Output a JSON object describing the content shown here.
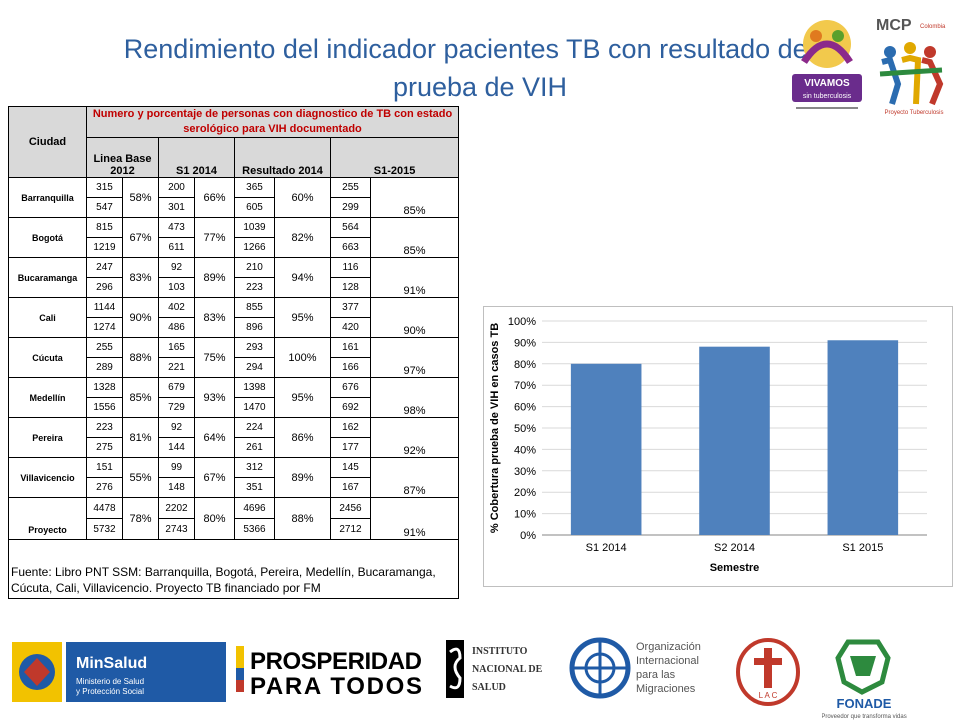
{
  "title": {
    "line1": "Rendimiento del indicador pacientes TB con resultado de la",
    "line2": "prueba de VIH"
  },
  "logos": {
    "vivamos_text": "VIVAMOS sin tuberculosis",
    "mcp_text": "MCP",
    "minsalud_text": "MinSalud",
    "minsalud_sub": "Ministerio de Salud y Protección Social",
    "prosperidad_line1": "PROSPERIDAD",
    "prosperidad_line2": "PARA TODOS",
    "ins_line1": "Instituto",
    "ins_line2": "Nacional de",
    "ins_line3": "Salud",
    "oim_line1": "Organización",
    "oim_line2": "Internacional",
    "oim_line3": "para las",
    "oim_line4": "Migraciones",
    "lac_text": "L A C",
    "fonade_text": "FONADE",
    "fonade_sub": "Proveedor que transforma vidas"
  },
  "table": {
    "header_city": "Ciudad",
    "header_main": "Numero y porcentaje de personas con diagnostico de TB con estado serológico para VIH documentado",
    "header_cols": [
      "Linea Base 2012",
      "S1 2014",
      "Resultado 2014",
      "S1-2015"
    ],
    "rows": [
      {
        "city": "Barranquilla",
        "lb": [
          "315",
          "547"
        ],
        "lb_pct": "58%",
        "s1": [
          "200",
          "301"
        ],
        "s1_pct": "66%",
        "r14": [
          "365",
          "605"
        ],
        "r14_pct": "60%",
        "s15": [
          "255",
          "299"
        ],
        "s15_pct": "85%"
      },
      {
        "city": "Bogotá",
        "lb": [
          "815",
          "1219"
        ],
        "lb_pct": "67%",
        "s1": [
          "473",
          "611"
        ],
        "s1_pct": "77%",
        "r14": [
          "1039",
          "1266"
        ],
        "r14_pct": "82%",
        "s15": [
          "564",
          "663"
        ],
        "s15_pct": "85%"
      },
      {
        "city": "Bucaramanga",
        "lb": [
          "247",
          "296"
        ],
        "lb_pct": "83%",
        "s1": [
          "92",
          "103"
        ],
        "s1_pct": "89%",
        "r14": [
          "210",
          "223"
        ],
        "r14_pct": "94%",
        "s15": [
          "116",
          "128"
        ],
        "s15_pct": "91%"
      },
      {
        "city": "Cali",
        "lb": [
          "1144",
          "1274"
        ],
        "lb_pct": "90%",
        "s1": [
          "402",
          "486"
        ],
        "s1_pct": "83%",
        "r14": [
          "855",
          "896"
        ],
        "r14_pct": "95%",
        "s15": [
          "377",
          "420"
        ],
        "s15_pct": "90%"
      },
      {
        "city": "Cúcuta",
        "lb": [
          "255",
          "289"
        ],
        "lb_pct": "88%",
        "s1": [
          "165",
          "221"
        ],
        "s1_pct": "75%",
        "r14": [
          "293",
          "294"
        ],
        "r14_pct": "100%",
        "s15": [
          "161",
          "166"
        ],
        "s15_pct": "97%"
      },
      {
        "city": "Medellín",
        "lb": [
          "1328",
          "1556"
        ],
        "lb_pct": "85%",
        "s1": [
          "679",
          "729"
        ],
        "s1_pct": "93%",
        "r14": [
          "1398",
          "1470"
        ],
        "r14_pct": "95%",
        "s15": [
          "676",
          "692"
        ],
        "s15_pct": "98%"
      },
      {
        "city": "Pereira",
        "lb": [
          "223",
          "275"
        ],
        "lb_pct": "81%",
        "s1": [
          "92",
          "144"
        ],
        "s1_pct": "64%",
        "r14": [
          "224",
          "261"
        ],
        "r14_pct": "86%",
        "s15": [
          "162",
          "177"
        ],
        "s15_pct": "92%"
      },
      {
        "city": "Villavicencio",
        "lb": [
          "151",
          "276"
        ],
        "lb_pct": "55%",
        "s1": [
          "99",
          "148"
        ],
        "s1_pct": "67%",
        "r14": [
          "312",
          "351"
        ],
        "r14_pct": "89%",
        "s15": [
          "145",
          "167"
        ],
        "s15_pct": "87%"
      },
      {
        "city": "Proyecto",
        "lb": [
          "4478",
          "5732"
        ],
        "lb_pct": "78%",
        "s1": [
          "2202",
          "2743"
        ],
        "s1_pct": "80%",
        "r14": [
          "4696",
          "5366"
        ],
        "r14_pct": "88%",
        "s15": [
          "2456",
          "2712"
        ],
        "s15_pct": "91%"
      }
    ],
    "footer": "Fuente: Libro PNT SSM: Barranquilla, Bogotá, Pereira, Medellín, Bucaramanga, Cúcuta, Cali, Villavicencio. Proyecto TB financiado por FM"
  },
  "chart_data": {
    "type": "bar",
    "categories": [
      "S1 2014",
      "S2 2014",
      "S1 2015"
    ],
    "values": [
      80,
      88,
      91
    ],
    "xlabel": "Semestre",
    "ylabel": "% Cobertura prueba de VIH en casos TB",
    "ylim": [
      0,
      100
    ],
    "yticks": [
      "0%",
      "10%",
      "20%",
      "30%",
      "40%",
      "50%",
      "60%",
      "70%",
      "80%",
      "90%",
      "100%"
    ],
    "grid": true,
    "legend": "none",
    "bar_color": "#4f81bd"
  }
}
